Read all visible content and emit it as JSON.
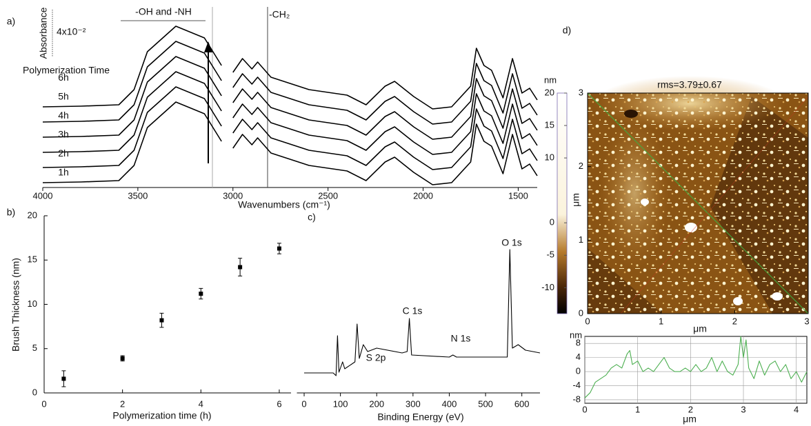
{
  "chart_data": [
    {
      "type": "line",
      "panel_label": "a)",
      "xlabel": "Wavenumbers (cm⁻¹)",
      "ylabel": "Absorbance",
      "scale_label": "4x10⁻²",
      "legend_title": "Polymerization Time",
      "annotations": [
        "-OH and -NH",
        "-CH₂"
      ],
      "x": [
        4000,
        3800,
        3600,
        3520,
        3450,
        3300,
        3150,
        3060,
        3040,
        3000,
        2950,
        2900,
        2870,
        2800,
        2600,
        2400,
        2300,
        2200,
        2150,
        2050,
        1950,
        1850,
        1750,
        1720,
        1680,
        1640,
        1580,
        1530,
        1480,
        1440,
        1400
      ],
      "xlim": [
        4000,
        1400
      ],
      "xticks": [
        4000,
        3500,
        3000,
        2500,
        2000,
        1500
      ],
      "ylim": [
        0,
        260
      ],
      "series": [
        {
          "name": "1h",
          "color": "#000000",
          "values": [
            7,
            8,
            10,
            32,
            87,
            124,
            107,
            67,
            null,
            57,
            77,
            62,
            72,
            50,
            32,
            24,
            10,
            37,
            44,
            22,
            4,
            7,
            37,
            92,
            67,
            60,
            20,
            77,
            27,
            34,
            17
          ]
        },
        {
          "name": "2h",
          "color": "#000000",
          "values": [
            29,
            30,
            32,
            54,
            109,
            146,
            129,
            89,
            null,
            79,
            99,
            84,
            94,
            72,
            54,
            46,
            32,
            59,
            66,
            44,
            26,
            29,
            59,
            114,
            89,
            82,
            42,
            99,
            49,
            56,
            39
          ]
        },
        {
          "name": "3h",
          "color": "#000000",
          "values": [
            51,
            52,
            54,
            76,
            131,
            168,
            151,
            111,
            null,
            101,
            121,
            106,
            116,
            94,
            76,
            68,
            54,
            81,
            88,
            66,
            48,
            51,
            81,
            136,
            111,
            104,
            64,
            121,
            71,
            78,
            61
          ]
        },
        {
          "name": "4h",
          "color": "#000000",
          "values": [
            73,
            74,
            76,
            98,
            153,
            190,
            173,
            133,
            null,
            123,
            143,
            128,
            138,
            116,
            98,
            90,
            76,
            103,
            110,
            88,
            70,
            73,
            103,
            158,
            133,
            126,
            86,
            143,
            93,
            100,
            83
          ]
        },
        {
          "name": "5h",
          "color": "#000000",
          "values": [
            95,
            96,
            98,
            120,
            175,
            212,
            195,
            155,
            null,
            145,
            165,
            150,
            160,
            138,
            120,
            112,
            98,
            125,
            132,
            110,
            92,
            95,
            125,
            180,
            155,
            148,
            108,
            165,
            115,
            122,
            105
          ]
        },
        {
          "name": "6h",
          "color": "#000000",
          "values": [
            117,
            118,
            120,
            142,
            197,
            234,
            217,
            177,
            null,
            167,
            187,
            172,
            182,
            160,
            142,
            134,
            120,
            147,
            154,
            132,
            114,
            117,
            147,
            202,
            177,
            170,
            130,
            187,
            137,
            144,
            127
          ]
        }
      ]
    },
    {
      "type": "scatter",
      "panel_label": "b)",
      "xlabel": "Polymerization time (h)",
      "ylabel": "Brush Thickness (nm)",
      "x": [
        0.5,
        2,
        3,
        4,
        5,
        6
      ],
      "values": [
        1.6,
        3.9,
        8.2,
        11.2,
        14.2,
        16.3
      ],
      "errors": [
        0.9,
        0.3,
        0.8,
        0.6,
        1.0,
        0.6
      ],
      "color": "#000000",
      "xlim": [
        0,
        6.3
      ],
      "xticks": [
        0,
        2,
        4,
        6
      ],
      "ylim": [
        0,
        20
      ],
      "yticks": [
        0,
        5,
        10,
        15,
        20
      ]
    },
    {
      "type": "line",
      "panel_label": "c)",
      "xlabel": "Binding Energy (eV)",
      "annotations": [
        "S 2p",
        "C 1s",
        "N 1s",
        "O 1s"
      ],
      "x": [
        0,
        80,
        88,
        92,
        96,
        106,
        112,
        140,
        146,
        152,
        163,
        175,
        200,
        270,
        284,
        290,
        296,
        400,
        410,
        420,
        560,
        567,
        574,
        590,
        610,
        650
      ],
      "values": [
        29,
        29,
        25,
        83,
        30,
        45,
        35,
        45,
        100,
        50,
        70,
        60,
        65,
        58,
        60,
        108,
        55,
        52,
        55,
        52,
        52,
        208,
        65,
        70,
        62,
        58
      ],
      "color": "#000000",
      "xlim": [
        -20,
        650
      ],
      "xticks": [
        0,
        100,
        200,
        300,
        400,
        500,
        600
      ],
      "ylim": [
        0,
        300
      ]
    },
    {
      "type": "image",
      "panel_label": "d)",
      "title": "rms=3.79±0.67",
      "xlabel": "μm",
      "ylabel": "μm",
      "xlim": [
        0,
        3
      ],
      "xticks": [
        0,
        1,
        2,
        3
      ],
      "ylim": [
        0,
        3
      ],
      "yticks": [
        0,
        1,
        2,
        3
      ],
      "colorbar": {
        "label": "nm",
        "lim": [
          -14,
          20
        ],
        "ticks": [
          20,
          15,
          10,
          0,
          -5,
          -10
        ]
      }
    },
    {
      "type": "line",
      "xlabel": "μm",
      "ylabel": "nm",
      "x": [
        0,
        0.1,
        0.2,
        0.3,
        0.4,
        0.5,
        0.6,
        0.7,
        0.8,
        0.85,
        0.9,
        1.0,
        1.1,
        1.2,
        1.3,
        1.4,
        1.5,
        1.6,
        1.7,
        1.8,
        1.9,
        2.0,
        2.1,
        2.2,
        2.3,
        2.4,
        2.5,
        2.6,
        2.7,
        2.8,
        2.9,
        2.95,
        3.0,
        3.05,
        3.1,
        3.2,
        3.3,
        3.4,
        3.5,
        3.6,
        3.7,
        3.8,
        3.9,
        4.0,
        4.1,
        4.2
      ],
      "values": [
        -7.5,
        -6,
        -3,
        -2,
        -1,
        1,
        2,
        1,
        5,
        6,
        2,
        3,
        0,
        1,
        0,
        2,
        4,
        1,
        0,
        0,
        1,
        0,
        2,
        0,
        1,
        4,
        0,
        3,
        0,
        -1,
        2,
        10,
        4,
        9,
        1,
        -2,
        3,
        -1,
        2,
        3,
        0,
        2,
        -2,
        0,
        -3,
        0
      ],
      "color": "#4caf50",
      "xlim": [
        0,
        4.2
      ],
      "xticks": [
        0,
        1,
        2,
        3,
        4
      ],
      "ylim": [
        -9,
        10
      ],
      "yticks": [
        8,
        4,
        0,
        -4,
        -8
      ],
      "grid": true
    }
  ]
}
